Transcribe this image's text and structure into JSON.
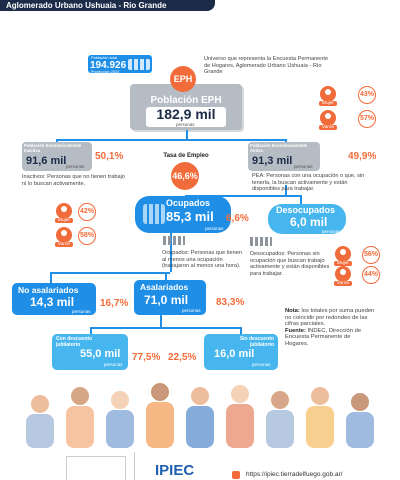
{
  "header": {
    "title": "Aglomerado Urbano Ushuaia - Río Grande"
  },
  "total_population": {
    "label": "Población total",
    "value": "194.926",
    "note": "Proyección 2023"
  },
  "universe_note": "Universo que representa la Encuesta Permanente de Hogares, Aglomerado Urbano Ushuaia - Río Grande",
  "eph": {
    "badge": "EPH",
    "label": "Población EPH",
    "value": "182,9 mil",
    "unit": "personas",
    "gender": [
      {
        "label": "Mujer",
        "value": "43%"
      },
      {
        "label": "Varón",
        "value": "57%"
      }
    ]
  },
  "inactive": {
    "label": "Población Económicamente Inactiva",
    "value": "91,6 mil",
    "unit": "personas",
    "percent": "50,1%",
    "definition": "Inactivos: Personas que no tienen trabajo ni lo buscan activamente."
  },
  "employment_rate": {
    "label": "Tasa de Empleo",
    "value": "46,6%"
  },
  "active": {
    "label": "Población Económicamente Activa",
    "value": "91,3 mil",
    "unit": "personas",
    "percent": "49,9%",
    "definition": "PEA: Personas con una ocupación o que, sin tenerla, la buscan activamente y están disponibles para trabajar."
  },
  "employed": {
    "label": "Ocupados",
    "value": "85,3 mil",
    "unit": "personas",
    "gender": [
      {
        "label": "Mujer",
        "value": "42%"
      },
      {
        "label": "Varón",
        "value": "58%"
      }
    ],
    "definition": "Ocupados: Personas que tienen al menos una ocupación (trabajaron al menos una hora)."
  },
  "unemployed": {
    "rate": "6,6%",
    "label": "Desocupados",
    "value": "6,0 mil",
    "unit": "personas",
    "gender": [
      {
        "label": "Mujer",
        "value": "56%"
      },
      {
        "label": "Varón",
        "value": "44%"
      }
    ],
    "definition": "Desocupados: Personas sin ocupación que buscan trabajo activamente y están disponibles para trabajar."
  },
  "non_salaried": {
    "label": "No asalariados",
    "value": "14,3 mil",
    "unit": "personas",
    "percent": "16,7%"
  },
  "salaried": {
    "label": "Asalariados",
    "value": "71,0 mil",
    "unit": "personas",
    "percent": "83,3%"
  },
  "with_pension": {
    "label": "Con descuento jubilatorio",
    "value": "55,0 mil",
    "unit": "personas",
    "percent": "77,5%"
  },
  "without_pension": {
    "label": "Sin descuento jubilatorio",
    "value": "16,0 mil",
    "unit": "personas",
    "percent": "22,5%"
  },
  "footnote": {
    "label": "Nota:",
    "text": "los totales por suma pueden no coincidir por redondeo de las cifras parciales."
  },
  "source": {
    "label": "Fuente:",
    "text": "INDEC, Dirección de Encuesta Permanente de Hogares."
  },
  "footer": {
    "logo": "IPIEC",
    "url": "https://ipiec.tierradelfuego.gob.ar/"
  }
}
